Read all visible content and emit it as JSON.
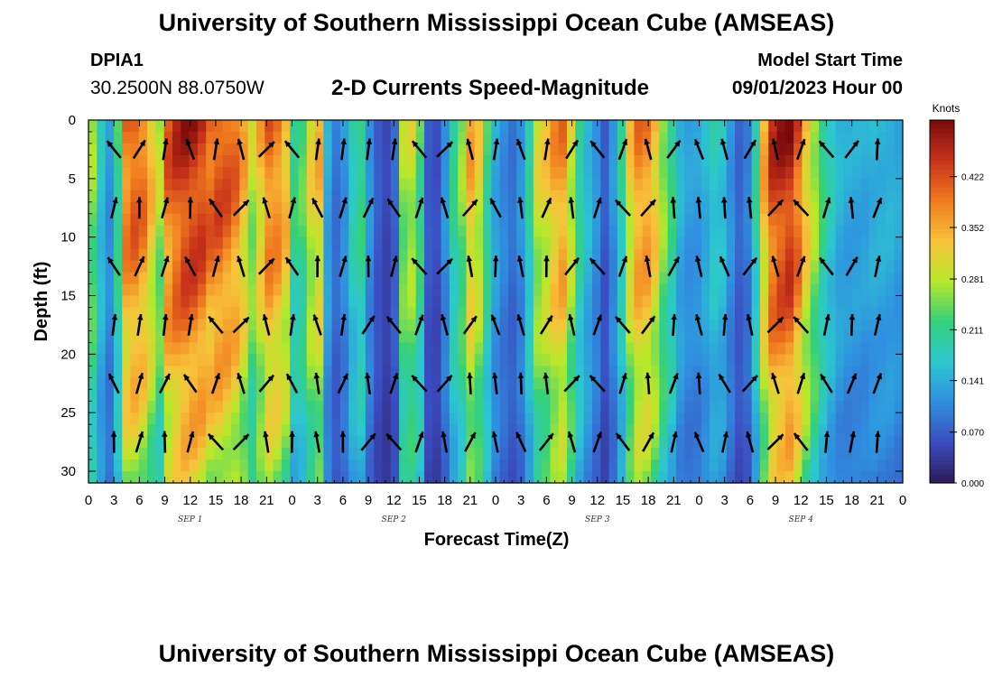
{
  "header": {
    "title": "University of Southern Mississippi Ocean Cube (AMSEAS)",
    "station": "DPIA1",
    "coords": "30.2500N  88.0750W",
    "plot_title": "2-D Currents Speed-Magnitude",
    "model_start_label": "Model Start Time",
    "model_start_value": "09/01/2023 Hour 00"
  },
  "footer": {
    "title": "University of Southern Mississippi Ocean Cube (AMSEAS)"
  },
  "colors": {
    "ramp": [
      "#2c1a5a",
      "#3b4cc0",
      "#2f8fe0",
      "#2cc7d0",
      "#34d07a",
      "#b8e82a",
      "#f8c23a",
      "#f07a1e",
      "#c8321a",
      "#7a0a0a"
    ]
  },
  "chart_data": {
    "type": "heatmap",
    "title": "2-D Currents Speed-Magnitude",
    "xlabel": "Forecast Time(Z)",
    "ylabel": "Depth (ft)",
    "x_tick_labels": [
      "0",
      "3",
      "6",
      "9",
      "12",
      "15",
      "18",
      "21",
      "0",
      "3",
      "6",
      "9",
      "12",
      "15",
      "18",
      "21",
      "0",
      "3",
      "6",
      "9",
      "12",
      "15",
      "18",
      "21",
      "0",
      "3",
      "6",
      "9",
      "12",
      "15",
      "18",
      "21",
      "0"
    ],
    "x_range_hours": [
      0,
      96
    ],
    "day_labels": [
      {
        "label": "SEP 1",
        "hour": 12
      },
      {
        "label": "SEP 2",
        "hour": 36
      },
      {
        "label": "SEP 3",
        "hour": 60
      },
      {
        "label": "SEP 4",
        "hour": 84
      }
    ],
    "y_ticks": [
      0,
      5,
      10,
      15,
      20,
      25,
      30
    ],
    "y_range_ft": [
      0,
      31
    ],
    "colorbar": {
      "unit": "Knots",
      "min": 0.0,
      "max": 0.5,
      "tick_values": [
        0.0,
        0.07,
        0.141,
        0.211,
        0.281,
        0.352,
        0.422
      ],
      "tick_labels": [
        "0.000",
        "0.070",
        "0.141",
        "0.211",
        "0.281",
        "0.352",
        "0.422"
      ]
    },
    "speed_profile_knots": [
      0.26,
      0.17,
      0.12,
      0.22,
      0.4,
      0.42,
      0.4,
      0.34,
      0.28,
      0.41,
      0.44,
      0.46,
      0.46,
      0.45,
      0.42,
      0.43,
      0.42,
      0.4,
      0.35,
      0.28,
      0.34,
      0.4,
      0.39,
      0.35,
      0.22,
      0.24,
      0.31,
      0.34,
      0.14,
      0.09,
      0.12,
      0.19,
      0.22,
      0.12,
      0.07,
      0.05,
      0.08,
      0.27,
      0.29,
      0.23,
      0.07,
      0.06,
      0.12,
      0.21,
      0.26,
      0.35,
      0.31,
      0.22,
      0.14,
      0.11,
      0.09,
      0.12,
      0.2,
      0.3,
      0.32,
      0.36,
      0.38,
      0.3,
      0.21,
      0.16,
      0.12,
      0.07,
      0.12,
      0.2,
      0.32,
      0.38,
      0.38,
      0.34,
      0.27,
      0.22,
      0.15,
      0.13,
      0.13,
      0.15,
      0.18,
      0.17,
      0.12,
      0.08,
      0.1,
      0.2,
      0.35,
      0.44,
      0.46,
      0.47,
      0.42,
      0.34,
      0.28,
      0.22,
      0.18,
      0.15,
      0.14,
      0.14,
      0.14,
      0.15,
      0.15,
      0.15,
      0.14
    ],
    "speed_profile_note": "Approximate depth-mean current speed (knots) at each forecast hour 0-96"
  }
}
